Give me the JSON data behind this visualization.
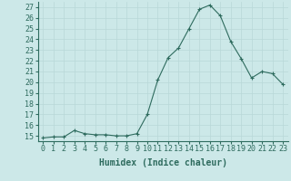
{
  "x": [
    0,
    1,
    2,
    3,
    4,
    5,
    6,
    7,
    8,
    9,
    10,
    11,
    12,
    13,
    14,
    15,
    16,
    17,
    18,
    19,
    20,
    21,
    22,
    23
  ],
  "y": [
    14.8,
    14.9,
    14.9,
    15.5,
    15.2,
    15.1,
    15.1,
    15.0,
    15.0,
    15.2,
    17.0,
    20.2,
    22.3,
    23.2,
    25.0,
    26.8,
    27.2,
    26.2,
    23.8,
    22.2,
    20.4,
    21.0,
    20.8,
    19.8
  ],
  "line_color": "#2e6b5e",
  "marker": "+",
  "bg_color": "#cce8e8",
  "grid_color": "#b8d8d8",
  "xlabel": "Humidex (Indice chaleur)",
  "xlim": [
    -0.5,
    23.5
  ],
  "ylim": [
    14.5,
    27.5
  ],
  "yticks": [
    15,
    16,
    17,
    18,
    19,
    20,
    21,
    22,
    23,
    24,
    25,
    26,
    27
  ],
  "xticks": [
    0,
    1,
    2,
    3,
    4,
    5,
    6,
    7,
    8,
    9,
    10,
    11,
    12,
    13,
    14,
    15,
    16,
    17,
    18,
    19,
    20,
    21,
    22,
    23
  ],
  "xlabel_fontsize": 7,
  "tick_fontsize": 6
}
